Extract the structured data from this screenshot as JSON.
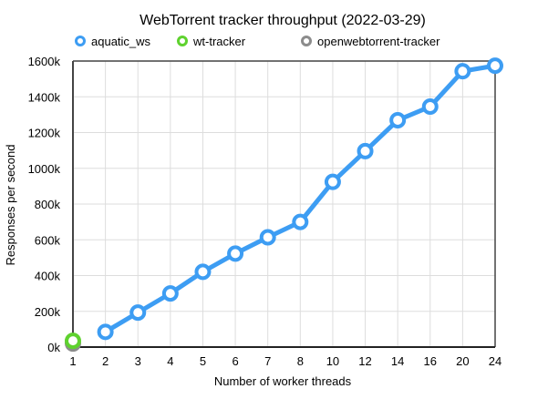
{
  "chart_data": {
    "type": "line",
    "title": "WebTorrent tracker throughput (2022-03-29)",
    "xlabel": "Number of worker threads",
    "ylabel": "Responses per second",
    "categories": [
      "1",
      "2",
      "3",
      "4",
      "5",
      "6",
      "7",
      "8",
      "10",
      "12",
      "14",
      "16",
      "20",
      "24"
    ],
    "ylim": [
      0,
      1600000
    ],
    "yticks": [
      "0k",
      "200k",
      "400k",
      "600k",
      "800k",
      "1000k",
      "1200k",
      "1400k",
      "1600k"
    ],
    "grid": true,
    "legend": "top",
    "series": [
      {
        "name": "aquatic_ws",
        "color": "#3d9df3",
        "values": [
          null,
          85000,
          193000,
          300000,
          421000,
          523000,
          614000,
          700000,
          924000,
          1096000,
          1269000,
          1345000,
          1543000,
          1574000
        ]
      },
      {
        "name": "wt-tracker",
        "color": "#5fd22f",
        "values": [
          35000,
          null,
          null,
          null,
          null,
          null,
          null,
          null,
          null,
          null,
          null,
          null,
          null,
          null
        ]
      },
      {
        "name": "openwebtorrent-tracker",
        "color": "#8c8c8c",
        "values": [
          20000,
          null,
          null,
          null,
          null,
          null,
          null,
          null,
          null,
          null,
          null,
          null,
          null,
          null
        ]
      }
    ]
  }
}
